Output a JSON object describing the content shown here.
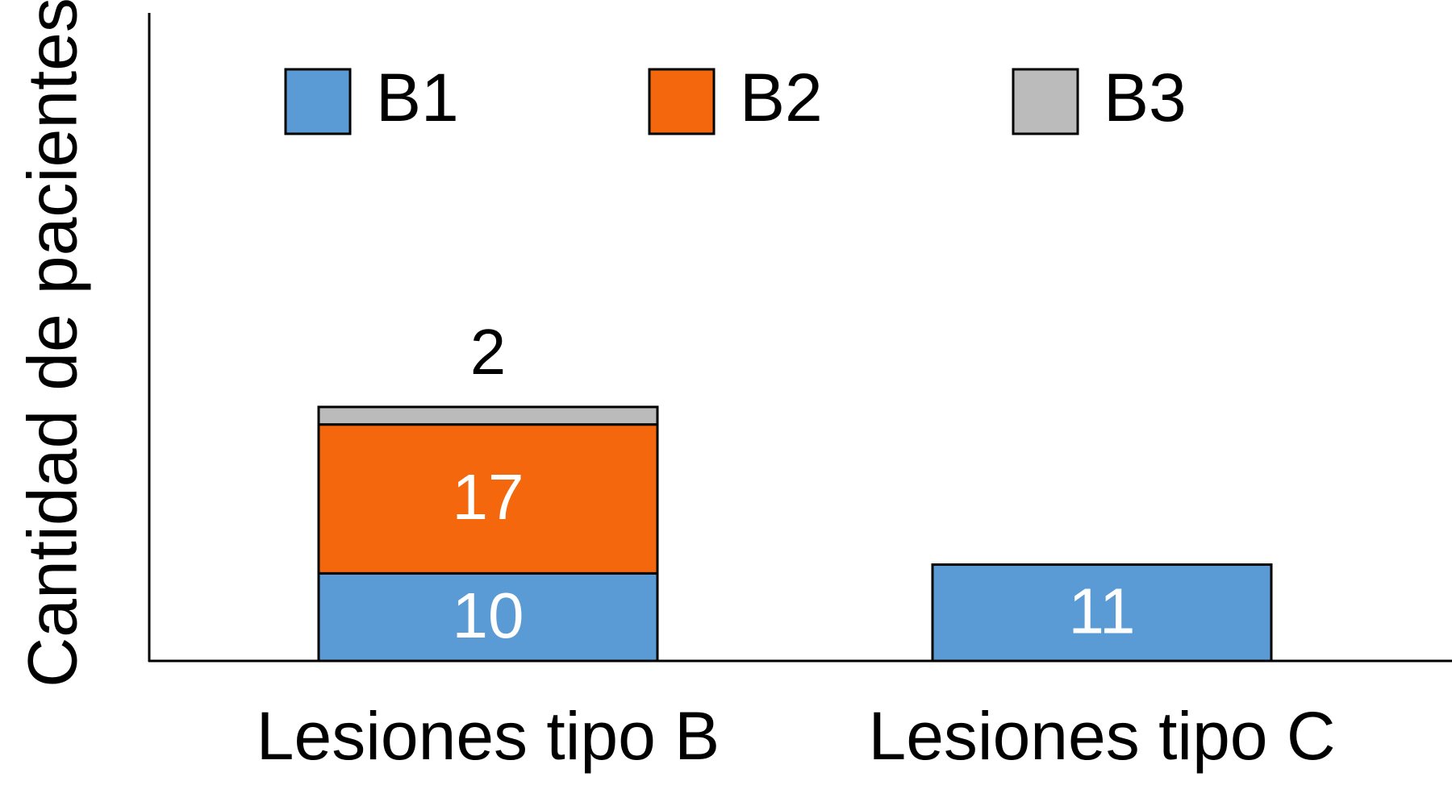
{
  "chart_data": {
    "type": "stacked-bar",
    "y_label": "Cantidad de pacientes",
    "categories": [
      "Lesiones tipo B",
      "Lesiones tipo C"
    ],
    "series": [
      {
        "name": "B1",
        "color": "#5b9bd5",
        "values": [
          10,
          11
        ]
      },
      {
        "name": "B2",
        "color": "#f5670c",
        "values": [
          17,
          null
        ]
      },
      {
        "name": "B3",
        "color": "#bbbbbb",
        "values": [
          2,
          null
        ]
      }
    ],
    "ylim": [
      0,
      74
    ]
  }
}
